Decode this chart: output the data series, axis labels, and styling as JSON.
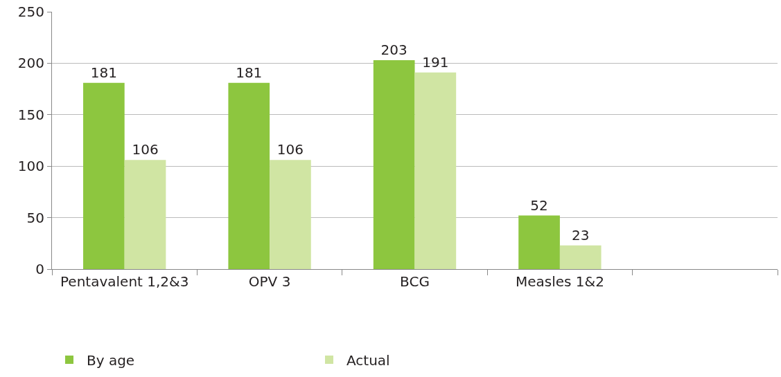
{
  "chart_data": {
    "type": "bar",
    "categories": [
      "Pentavalent 1,2&3",
      "OPV 3",
      "BCG",
      "Measles 1&2",
      null
    ],
    "series": [
      {
        "name": "By age",
        "color": "#8dc63f",
        "values": [
          181,
          181,
          203,
          52,
          null
        ]
      },
      {
        "name": "Actual",
        "color": "#d0e5a3",
        "values": [
          106,
          106,
          191,
          23,
          null
        ]
      }
    ],
    "ylim": [
      0,
      250
    ],
    "yticks": [
      0,
      50,
      100,
      150,
      200,
      250
    ],
    "grid": "y",
    "legend": "bottom left",
    "data_labels": true
  }
}
